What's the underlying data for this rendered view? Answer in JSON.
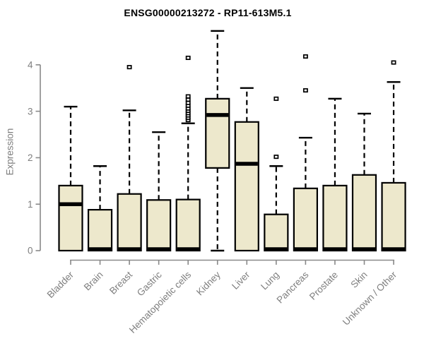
{
  "chart_data": {
    "type": "boxplot",
    "title": "ENSG00000213272 - RP11-613M5.1",
    "ylabel": "Expression",
    "xlabel": "",
    "ylim": [
      0,
      4.87
    ],
    "yticks": [
      0,
      1,
      2,
      3,
      4
    ],
    "grid": false,
    "legend": null,
    "x_label_rotation_deg": 45,
    "categories": [
      "Bladder",
      "Brain",
      "Breast",
      "Gastric",
      "Hematopoietic cells",
      "Kidney",
      "Liver",
      "Lung",
      "Pancreas",
      "Prostate",
      "Skin",
      "Unknown / Other"
    ],
    "series": [
      {
        "name": "Bladder",
        "low": 0,
        "q1": 0,
        "median": 1.0,
        "q3": 1.4,
        "high": 3.1,
        "outliers": []
      },
      {
        "name": "Brain",
        "low": 0,
        "q1": 0,
        "median": 0.03,
        "q3": 0.88,
        "high": 1.82,
        "outliers": []
      },
      {
        "name": "Breast",
        "low": 0,
        "q1": 0,
        "median": 0.03,
        "q3": 1.22,
        "high": 3.02,
        "outliers": [
          3.95
        ]
      },
      {
        "name": "Gastric",
        "low": 0,
        "q1": 0,
        "median": 0.03,
        "q3": 1.09,
        "high": 2.55,
        "outliers": []
      },
      {
        "name": "Hematopoietic cells",
        "low": 0,
        "q1": 0,
        "median": 0.03,
        "q3": 1.1,
        "high": 2.74,
        "outliers": [
          2.81,
          2.86,
          2.91,
          2.96,
          3.01,
          3.06,
          3.12,
          3.18,
          3.25,
          3.32,
          4.15
        ]
      },
      {
        "name": "Kidney",
        "low": 0,
        "q1": 1.78,
        "median": 2.92,
        "q3": 3.27,
        "high": 4.73,
        "outliers": []
      },
      {
        "name": "Liver",
        "low": 0,
        "q1": 0,
        "median": 1.87,
        "q3": 2.77,
        "high": 3.5,
        "outliers": []
      },
      {
        "name": "Lung",
        "low": 0,
        "q1": 0,
        "median": 0.03,
        "q3": 0.78,
        "high": 1.82,
        "outliers": [
          2.02,
          3.27
        ]
      },
      {
        "name": "Pancreas",
        "low": 0,
        "q1": 0,
        "median": 0.03,
        "q3": 1.34,
        "high": 2.43,
        "outliers": [
          3.45,
          4.18
        ]
      },
      {
        "name": "Prostate",
        "low": 0,
        "q1": 0,
        "median": 0.03,
        "q3": 1.4,
        "high": 3.27,
        "outliers": []
      },
      {
        "name": "Skin",
        "low": 0,
        "q1": 0,
        "median": 0.03,
        "q3": 1.63,
        "high": 2.95,
        "outliers": []
      },
      {
        "name": "Unknown / Other",
        "low": 0,
        "q1": 0,
        "median": 0.03,
        "q3": 1.46,
        "high": 3.63,
        "outliers": [
          4.05
        ]
      }
    ],
    "colors": {
      "box_fill": "#EDE8CC",
      "box_stroke": "#000000",
      "median": "#000000",
      "whisker": "#000000",
      "axis": "#898989",
      "tick_label": "#7E7E7E",
      "title": "#000000",
      "background": "#FFFFFF"
    }
  }
}
